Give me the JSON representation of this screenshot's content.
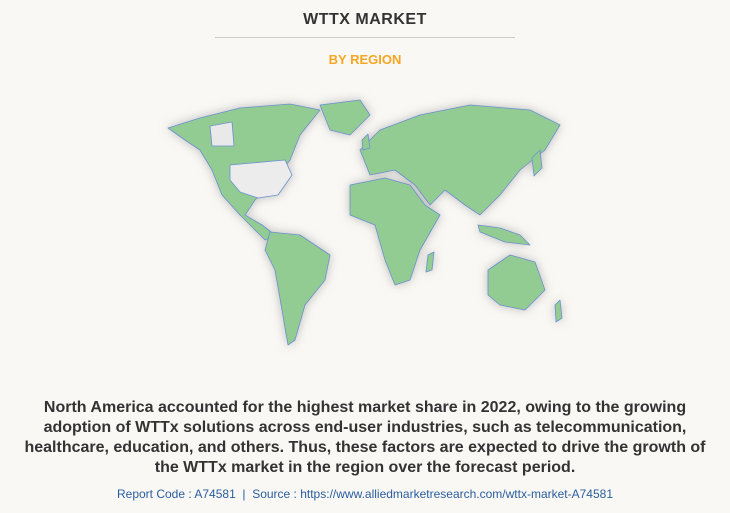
{
  "title": "WTTX MARKET",
  "subtitle": "BY REGION",
  "description": {
    "lines": [
      "North America accounted for the highest market share in 2022, owing to the growing",
      "adoption of WTTx solutions across end-user industries, such as telecommunication,",
      "healthcare, education, and others. Thus, these factors are expected to drive the growth of",
      "the WTTx market in the region over the forecast period."
    ]
  },
  "footer": "Report Code : A74581  |  Source : https://www.alliedmarketresearch.com/wttx-market-A74581"
}
